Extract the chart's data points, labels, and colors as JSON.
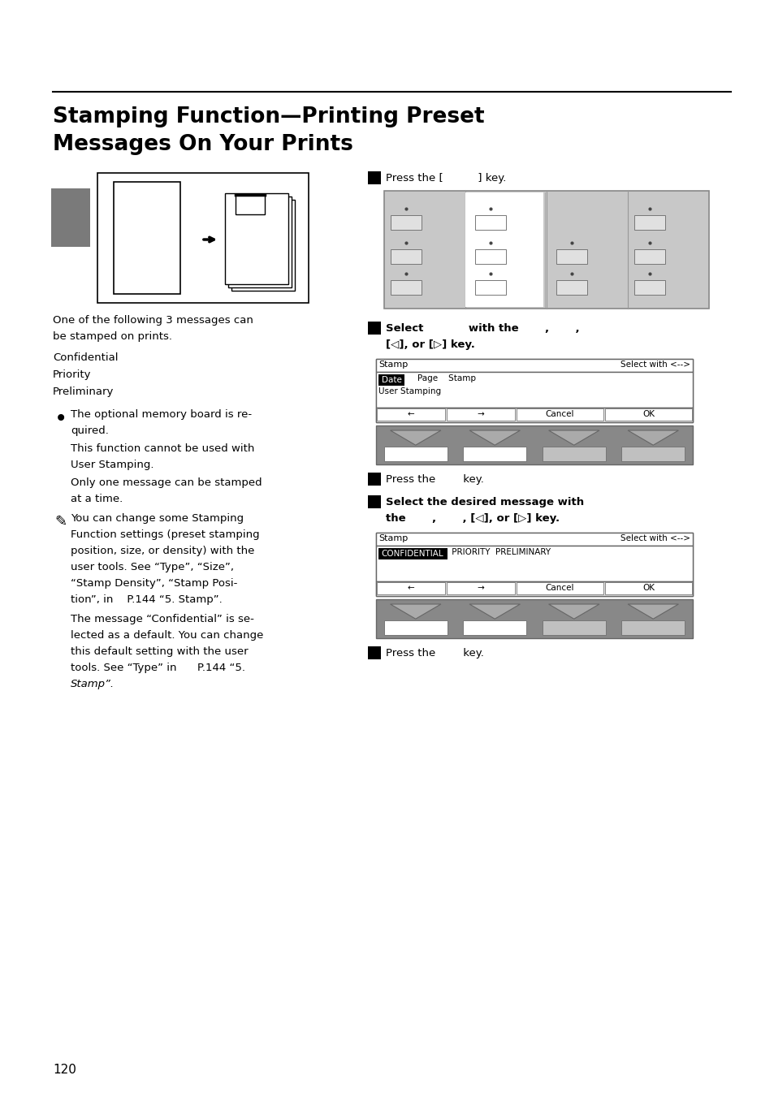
{
  "bg_color": "#ffffff",
  "title_line1": "Stamping Function—Printing Preset",
  "title_line2": "Messages On Your Prints",
  "page_number": "120",
  "left_body1": "One of the following 3 messages can",
  "left_body2": "be stamped on prints.",
  "left_item1": "Confidential",
  "left_item2": "Priority",
  "left_item3": "Preliminary",
  "note1_l1": "The optional memory board is re-",
  "note1_l2": "quired.",
  "note2_l1": "This function cannot be used with",
  "note2_l2": "User Stamping.",
  "note3_l1": "Only one message can be stamped",
  "note3_l2": "at a time.",
  "pencil1_l1": "You can change some Stamping",
  "pencil1_l2": "Function settings (preset stamping",
  "pencil1_l3": "position, size, or density) with the",
  "pencil1_l4": "user tools. See “Type”, “Size”,",
  "pencil1_l5": "“Stamp Density”, “Stamp Posi-",
  "pencil1_l6": "tion”, in    P.144 “5. Stamp”.",
  "pencil2_l1": "The message “Confidential” is se-",
  "pencil2_l2": "lected as a default. You can change",
  "pencil2_l3": "this default setting with the user",
  "pencil2_l4": "tools. See “Type” in      P.144 “5.",
  "pencil2_l5": "Stamp”.",
  "step1_label": "Press the [          ] key.",
  "step2_l1": "Select            with the       ,       ,",
  "step2_l2": "[◁], or [▷] key.",
  "step3_label": "Press the        key.",
  "step4_l1": "Select the desired message with",
  "step4_l2": "the       ,       , [◁], or [▷] key.",
  "step5_label": "Press the        key.",
  "sc1_title": "Stamp",
  "sc1_right": "Select with <-->",
  "sc1_r1": "Date",
  "sc1_r1b": "    Page    Stamp",
  "sc1_r2": "User Stamping",
  "sc2_title": "Stamp",
  "sc2_right": "Select with <-->",
  "sc2_r1a": "CONFIDENTIAL",
  "sc2_r1b": " PRIORITY  PRELIMINARY",
  "gray_tab": "#7a7a7a",
  "panel_bg": "#c8c8c8",
  "panel_light": "#e0e0e0",
  "btn_bg": "#b0b0b0",
  "fkey_bg": "#888888",
  "fkey_tri": "#aaaaaa",
  "screen_bg": "#d8d8d8",
  "screen_title_bg": "#ffffff"
}
